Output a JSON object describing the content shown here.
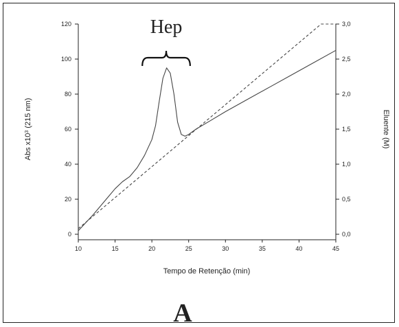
{
  "chart_data": {
    "type": "line",
    "xlabel": "Tempo de Retenção (min)",
    "ylabel_left": "Abs x10",
    "ylabel_left_sup": "3",
    "ylabel_left_unit": " (215 nm)",
    "ylabel_right": "Eluente (M)",
    "xlim": [
      10,
      45
    ],
    "ylim_left": [
      0,
      120
    ],
    "ylim_right": [
      0,
      3.0
    ],
    "x_ticks": [
      {
        "value": 10,
        "label": "10"
      },
      {
        "value": 15,
        "label": "15"
      },
      {
        "value": 20,
        "label": "20"
      },
      {
        "value": 25,
        "label": "25"
      },
      {
        "value": 30,
        "label": "30"
      },
      {
        "value": 35,
        "label": "35"
      },
      {
        "value": 40,
        "label": "40"
      },
      {
        "value": 45,
        "label": "45"
      }
    ],
    "y_left_ticks": [
      {
        "value": 0,
        "label": "0"
      },
      {
        "value": 20,
        "label": "20"
      },
      {
        "value": 40,
        "label": "40"
      },
      {
        "value": 60,
        "label": "60"
      },
      {
        "value": 80,
        "label": "80"
      },
      {
        "value": 100,
        "label": "100"
      },
      {
        "value": 120,
        "label": "120"
      }
    ],
    "y_right_ticks": [
      {
        "value": 0.0,
        "label": "0,0"
      },
      {
        "value": 0.5,
        "label": "0,5"
      },
      {
        "value": 1.0,
        "label": "1,0"
      },
      {
        "value": 1.5,
        "label": "1,5"
      },
      {
        "value": 2.0,
        "label": "2,0"
      },
      {
        "value": 2.5,
        "label": "2,5"
      },
      {
        "value": 3.0,
        "label": "3,0"
      }
    ],
    "series": [
      {
        "axis": "left",
        "style": "solid",
        "x": [
          10,
          12,
          14,
          15,
          16,
          17,
          18,
          19,
          20,
          20.5,
          21,
          21.5,
          22,
          22.5,
          23,
          23.5,
          24,
          24.5,
          25,
          26,
          28,
          30,
          33,
          36,
          39,
          42,
          45
        ],
        "y": [
          2,
          11,
          21,
          26,
          30,
          33,
          38,
          45,
          54,
          62,
          76,
          89,
          95,
          92,
          80,
          64,
          57,
          56,
          57,
          60,
          65,
          70,
          77,
          84,
          91,
          98,
          105
        ]
      },
      {
        "axis": "right",
        "style": "dashed",
        "x": [
          10,
          43,
          45
        ],
        "y": [
          0.08,
          3.0,
          3.0
        ]
      }
    ],
    "annotations": [
      {
        "type": "brace",
        "text": "Hep",
        "x_start": 18.7,
        "x_end": 25.2
      }
    ],
    "panel_label": "A",
    "grid": false
  }
}
